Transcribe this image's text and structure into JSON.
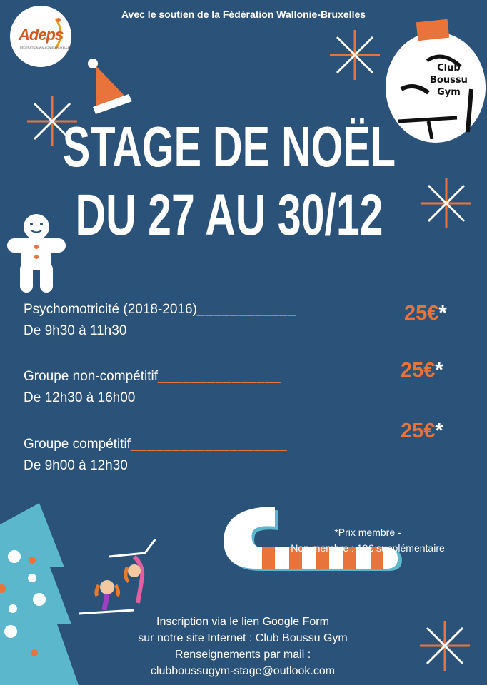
{
  "header": {
    "support_text": "Avec le soutien de la Fédération Wallonie-Bruxelles"
  },
  "logos": {
    "adeps": {
      "name": "Adeps",
      "subtitle": "FÉDÉRATION WALLONIE-BRUXELLES"
    },
    "club": {
      "line1": "Club",
      "line2": "Boussu",
      "line3": "Gym"
    }
  },
  "title": {
    "line1": "STAGE DE NOËL",
    "line2": "DU 27 AU 30/12"
  },
  "groups": [
    {
      "name": "Psychomotricité (2018-2016)",
      "dashes": "____________",
      "hours": "De 9h30 à 11h30",
      "price": "25€",
      "asterisk": "*"
    },
    {
      "name": "Groupe non-compétitif",
      "dashes": "_______________",
      "hours": "De 12h30 à 16h00",
      "price": "25€",
      "asterisk": "*"
    },
    {
      "name": "Groupe compétitif",
      "dashes": "___________________",
      "hours": "De 9h00 à 12h30",
      "price": "25€",
      "asterisk": "*"
    }
  ],
  "note": {
    "line1": "*Prix membre -",
    "line2": "Non membre : 10€ supplémentaire"
  },
  "footer": {
    "line1": "Inscription via le lien Google Form",
    "line2": "sur notre site Internet : Club Boussu Gym",
    "line3": "Renseignements par mail :",
    "email": "clubboussugym-stage@outlook.com"
  },
  "colors": {
    "background": "#2b5279",
    "accent": "#e8743b",
    "tree": "#5bb8cc",
    "text": "#ffffff"
  }
}
